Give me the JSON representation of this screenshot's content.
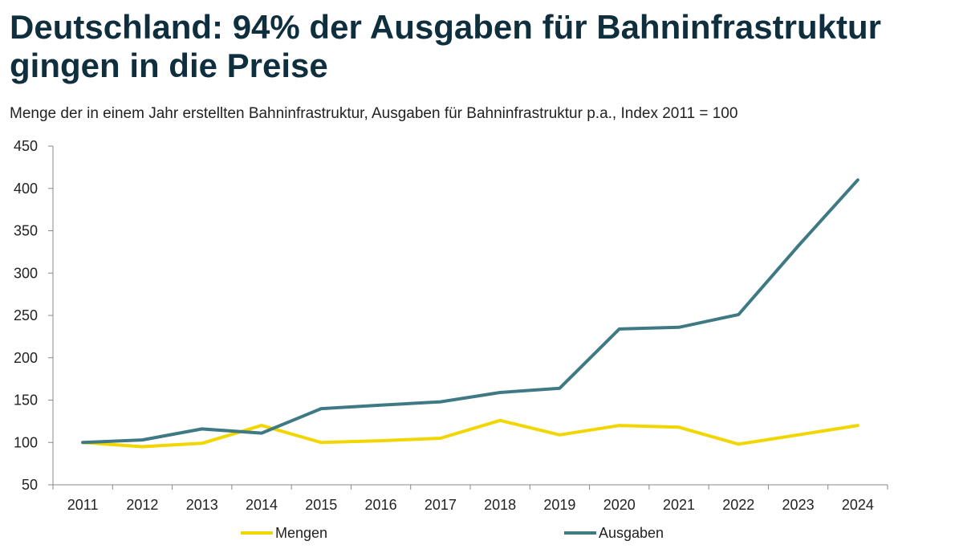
{
  "chart_data": {
    "type": "line",
    "title": "Deutschland: 94% der Ausgaben für Bahninfrastruktur gingen in die Preise",
    "subtitle": "Menge der in einem Jahr erstellten Bahninfrastruktur, Ausgaben für Bahninfrastruktur p.a., Index 2011 = 100",
    "categories": [
      "2011",
      "2012",
      "2013",
      "2014",
      "2015",
      "2016",
      "2017",
      "2018",
      "2019",
      "2020",
      "2021",
      "2022",
      "2023",
      "2024"
    ],
    "ylim": [
      50,
      450
    ],
    "yticks": [
      50,
      100,
      150,
      200,
      250,
      300,
      350,
      400,
      450
    ],
    "series": [
      {
        "name": "Mengen",
        "color": "#f2d600",
        "values": [
          100,
          95,
          99,
          120,
          100,
          102,
          105,
          126,
          109,
          120,
          118,
          98,
          109,
          120
        ]
      },
      {
        "name": "Ausgaben",
        "color": "#3f7a84",
        "values": [
          100,
          103,
          116,
          111,
          140,
          144,
          148,
          159,
          164,
          234,
          236,
          251,
          332,
          410
        ]
      }
    ],
    "legend": "bottom"
  }
}
